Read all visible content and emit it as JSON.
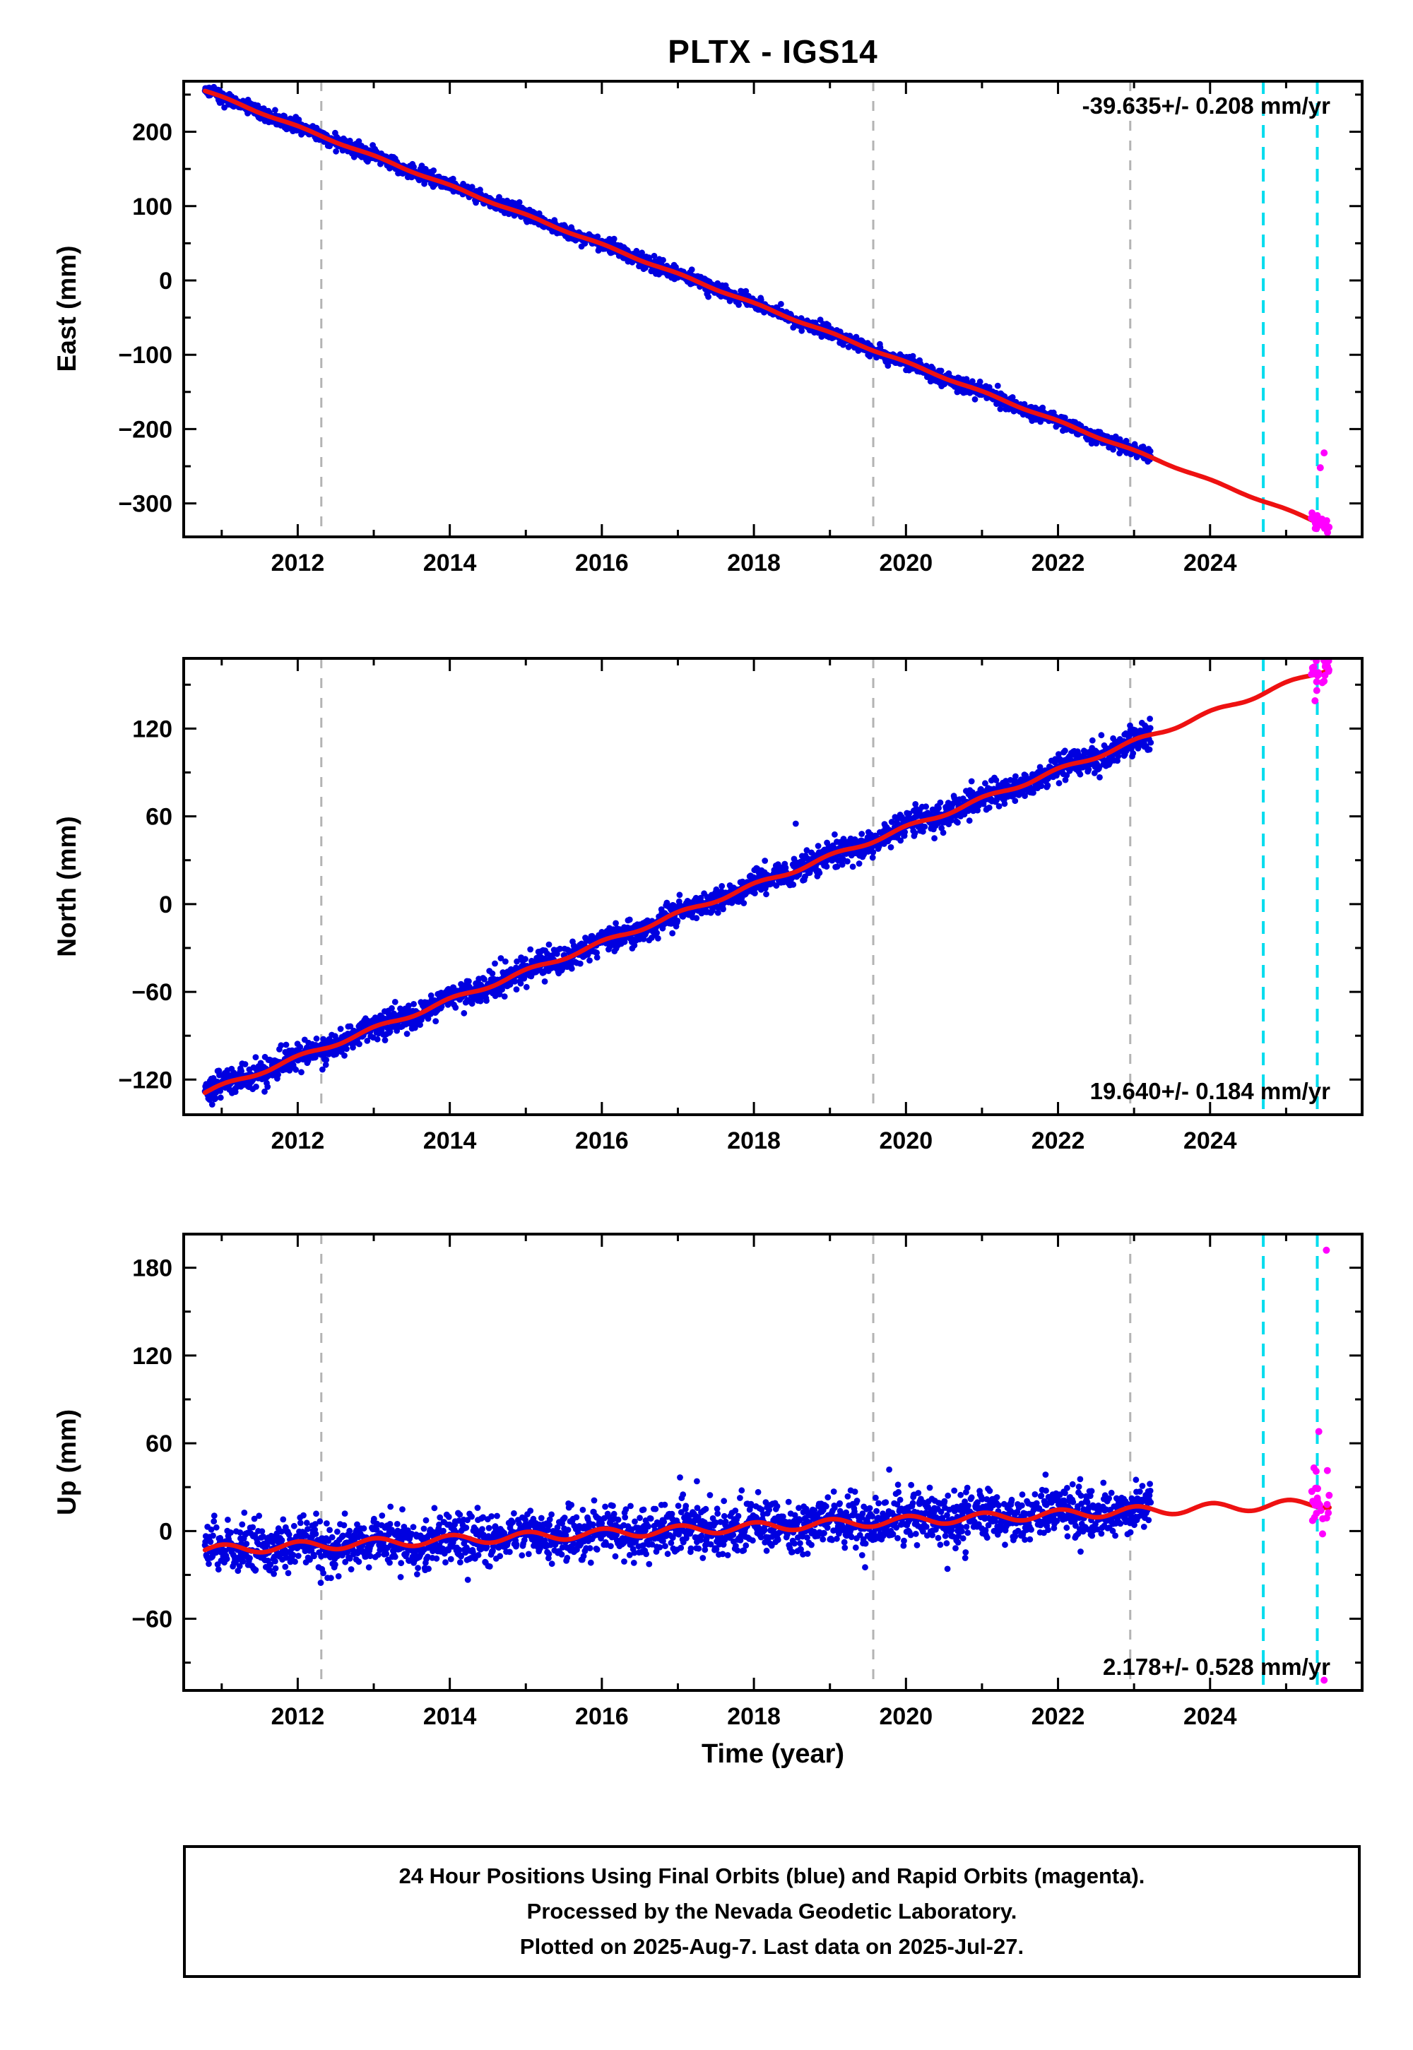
{
  "title": "PLTX - IGS14",
  "xlabel": "Time (year)",
  "caption": {
    "lines": [
      "24 Hour Positions Using Final Orbits (blue) and Rapid Orbits (magenta).",
      "Processed by the Nevada Geodetic Laboratory.",
      "Plotted on 2025-Aug-7. Last data on 2025-Jul-27."
    ]
  },
  "colors": {
    "final_orbit": "#0000e0",
    "rapid_orbit": "#ff00ff",
    "model_line": "#ee1111",
    "event_line_gray": "#b3b3b3",
    "event_line_cyan": "#00dcee",
    "frame": "#000000"
  },
  "chart_data": [
    {
      "type": "scatter",
      "panel": "east",
      "ylabel": "East (mm)",
      "xlim": [
        2010.5,
        2026.0
      ],
      "ylim": [
        -345,
        268
      ],
      "xticks": [
        2012,
        2014,
        2016,
        2018,
        2020,
        2022,
        2024
      ],
      "yticks": [
        200,
        100,
        0,
        -100,
        -200,
        -300
      ],
      "x_minor_step": 1,
      "y_minor_step": 50,
      "rate_label": "-39.635+/- 0.208 mm/yr",
      "rate_label_pos": "top-right",
      "trend": {
        "slope_mm_per_yr": -39.635,
        "ref_year": 2010.78,
        "ref_value_mm": 255,
        "seasonal_amp_mm": 1.2
      },
      "final_data": {
        "start": 2010.78,
        "end": 2023.22,
        "sigma_mm": 4.5,
        "points_per_year": 180,
        "outliers": [
          [
            2013.95,
            135
          ]
        ]
      },
      "model_line": {
        "start": 2010.78,
        "end": 2025.57
      },
      "rapid_data": {
        "start": 2025.33,
        "end": 2025.57,
        "sigma_mm": 6,
        "count": 26,
        "outliers": [
          [
            2025.45,
            -252
          ],
          [
            2025.5,
            -232
          ]
        ]
      },
      "events_gray": [
        2012.31,
        2019.57,
        2022.95
      ],
      "events_cyan": [
        2024.7,
        2025.41
      ]
    },
    {
      "type": "scatter",
      "panel": "north",
      "ylabel": "North (mm)",
      "xlim": [
        2010.5,
        2026.0
      ],
      "ylim": [
        -144,
        168
      ],
      "xticks": [
        2012,
        2014,
        2016,
        2018,
        2020,
        2022,
        2024
      ],
      "yticks": [
        120,
        60,
        0,
        -60,
        -120
      ],
      "x_minor_step": 1,
      "y_minor_step": 30,
      "rate_label": "19.640+/- 0.184 mm/yr",
      "rate_label_pos": "bottom-right",
      "trend": {
        "slope_mm_per_yr": 19.64,
        "ref_year": 2010.78,
        "ref_value_mm": -129,
        "seasonal_amp_mm": 1.5
      },
      "final_data": {
        "start": 2010.78,
        "end": 2023.22,
        "sigma_mm": 4.5,
        "points_per_year": 180,
        "outliers": [
          [
            2018.55,
            55
          ]
        ]
      },
      "model_line": {
        "start": 2010.78,
        "end": 2025.57
      },
      "rapid_data": {
        "start": 2025.33,
        "end": 2025.57,
        "sigma_mm": 5.5,
        "count": 26,
        "outliers": [
          [
            2025.38,
            139
          ]
        ]
      },
      "events_gray": [
        2012.31,
        2019.57,
        2022.95
      ],
      "events_cyan": [
        2024.7,
        2025.41
      ]
    },
    {
      "type": "scatter",
      "panel": "up",
      "ylabel": "Up (mm)",
      "xlim": [
        2010.5,
        2026.0
      ],
      "ylim": [
        -109,
        203
      ],
      "xticks": [
        2012,
        2014,
        2016,
        2018,
        2020,
        2022,
        2024
      ],
      "yticks": [
        180,
        120,
        60,
        0,
        -60
      ],
      "x_minor_step": 1,
      "y_minor_step": 30,
      "rate_label": "2.178+/- 0.528 mm/yr",
      "rate_label_pos": "bottom-right",
      "trend": {
        "slope_mm_per_yr": 2.178,
        "ref_year": 2010.78,
        "ref_value_mm": -13,
        "seasonal_amp_mm": 3.2
      },
      "final_data": {
        "start": 2010.78,
        "end": 2023.22,
        "sigma_mm": 8.5,
        "points_per_year": 180,
        "outliers": [
          [
            2019.78,
            42
          ],
          [
            2017.25,
            34
          ]
        ]
      },
      "model_line": {
        "start": 2010.78,
        "end": 2025.57
      },
      "rapid_data": {
        "start": 2025.33,
        "end": 2025.57,
        "sigma_mm": 11,
        "count": 24,
        "outliers": [
          [
            2025.53,
            192
          ],
          [
            2025.43,
            68
          ],
          [
            2025.5,
            -102
          ]
        ]
      },
      "events_gray": [
        2012.31,
        2019.57,
        2022.95
      ],
      "events_cyan": [
        2024.7,
        2025.41
      ]
    }
  ]
}
